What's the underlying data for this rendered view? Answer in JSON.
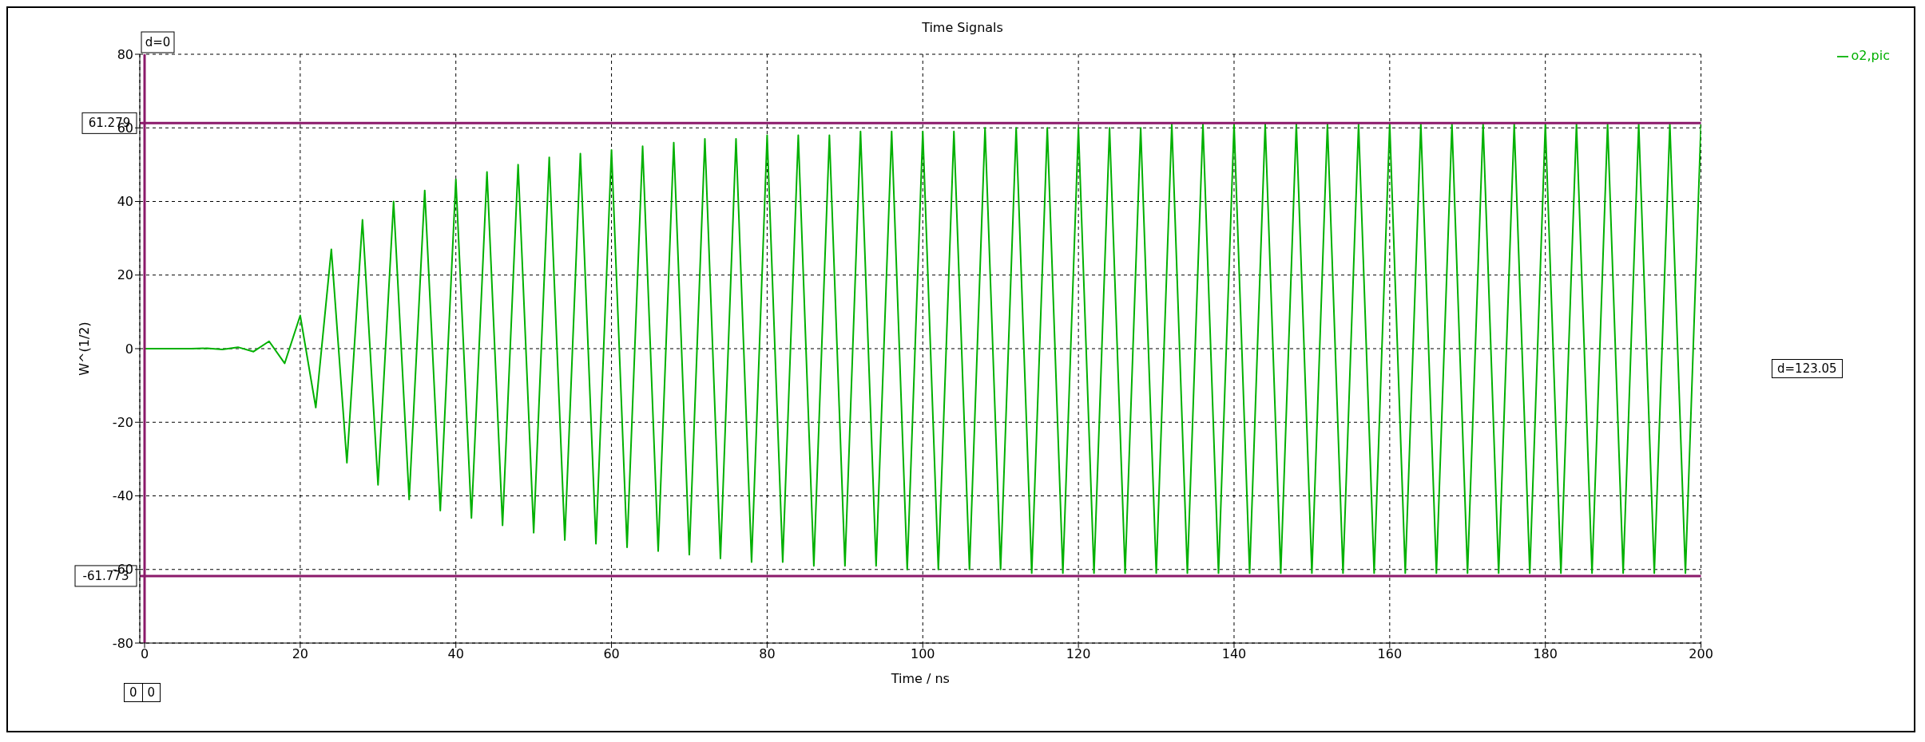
{
  "chart_data": {
    "type": "line",
    "title": "Time Signals",
    "xlabel": "Time / ns",
    "ylabel": "W^(1/2)",
    "x": [
      0,
      2,
      4,
      6,
      8,
      10,
      12,
      14,
      16,
      18,
      20,
      22,
      24,
      26,
      28,
      30,
      32,
      34,
      36,
      38,
      40,
      42,
      44,
      46,
      48,
      50,
      52,
      54,
      56,
      58,
      60,
      62,
      64,
      66,
      68,
      70,
      72,
      74,
      76,
      78,
      80,
      82,
      84,
      86,
      88,
      90,
      92,
      94,
      96,
      98,
      100,
      102,
      104,
      106,
      108,
      110,
      112,
      114,
      116,
      118,
      120,
      122,
      124,
      126,
      128,
      130,
      132,
      134,
      136,
      138,
      140,
      142,
      144,
      146,
      148,
      150,
      152,
      154,
      156,
      158,
      160,
      162,
      164,
      166,
      168,
      170,
      172,
      174,
      176,
      178,
      180,
      182,
      184,
      186,
      188,
      190,
      192,
      194,
      196,
      198,
      200
    ],
    "series": [
      {
        "name": "o2,pic",
        "color": "#00b000",
        "values": [
          0,
          0,
          0,
          0,
          0.1,
          -0.2,
          0.4,
          -0.8,
          2,
          -4,
          9,
          -16,
          27,
          -31,
          35,
          -37,
          40,
          -41,
          43,
          -44,
          46,
          -46,
          48,
          -48,
          50,
          -50,
          52,
          -52,
          53,
          -53,
          54,
          -54,
          55,
          -55,
          56,
          -56,
          57,
          -57,
          57,
          -58,
          58,
          -58,
          58,
          -59,
          58,
          -59,
          59,
          -59,
          59,
          -60,
          59,
          -60,
          59,
          -60,
          60,
          -60,
          60,
          -61,
          60,
          -61,
          60,
          -61,
          60,
          -61,
          60,
          -61,
          61,
          -61,
          61,
          -61,
          61,
          -61,
          61,
          -61,
          61,
          -61,
          61,
          -61,
          61,
          -61,
          61,
          -61,
          61,
          -61,
          61,
          -61,
          61,
          -61,
          61,
          -61,
          61,
          -61,
          61,
          -61,
          61,
          -61,
          61,
          -61,
          61,
          -61,
          61
        ]
      }
    ],
    "xlim": [
      0,
      200
    ],
    "xticks": [
      0,
      20,
      40,
      60,
      80,
      100,
      120,
      140,
      160,
      180,
      200
    ],
    "ylim": [
      -80,
      80
    ],
    "yticks": [
      -80,
      -60,
      -40,
      -20,
      0,
      20,
      40,
      60,
      80
    ],
    "grid": true,
    "legend": "top right",
    "marker": "none",
    "line_style": "solid",
    "ref_lines": [
      {
        "axis": "y",
        "value": 61.279,
        "label": "61.279",
        "color": "#8b1a6b"
      },
      {
        "axis": "y",
        "value": -61.773,
        "label": "-61.773",
        "color": "#8b1a6b"
      },
      {
        "axis": "x",
        "value": 0,
        "label": "d=0",
        "color": "#8b1a6b"
      }
    ],
    "annotations": [
      "d=123.05",
      "0",
      "0"
    ]
  }
}
